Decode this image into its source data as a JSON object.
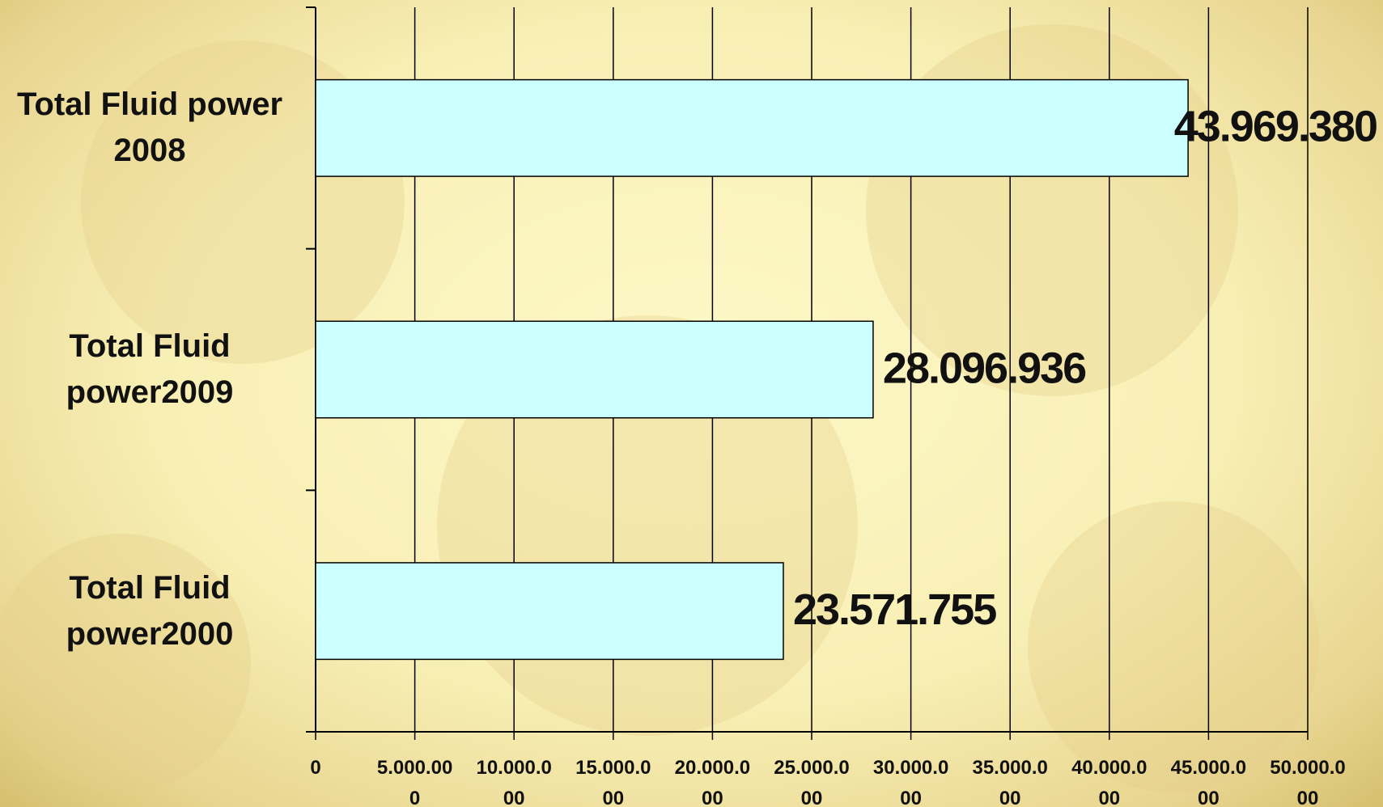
{
  "chart_data": {
    "type": "bar",
    "orientation": "horizontal",
    "categories": [
      "Total Fluid power 2008",
      "Total Fluid power2009",
      "Total Fluid power2000"
    ],
    "values": [
      43969380,
      28096936,
      23571755
    ],
    "value_labels": [
      "43.969.380",
      "28.096.936",
      "23.571.755"
    ],
    "color": "#ccffff",
    "xlim": [
      0,
      50000000
    ],
    "xticks": [
      0,
      {
        "value": 5000000,
        "label": "5.000.000"
      },
      {
        "value": 10000000,
        "label": "10.000.000"
      },
      {
        "value": 15000000,
        "label": "15.000.000"
      },
      {
        "value": 20000000,
        "label": "20.000.000"
      },
      {
        "value": 25000000,
        "label": "25.000.000"
      },
      {
        "value": 30000000,
        "label": "30.000.000"
      },
      {
        "value": 35000000,
        "label": "35.000.000"
      },
      {
        "value": 40000000,
        "label": "40.000.000"
      },
      {
        "value": 45000000,
        "label": "45.000.000"
      },
      {
        "value": 50000000,
        "label": "50.000.000"
      }
    ],
    "grid": true
  }
}
